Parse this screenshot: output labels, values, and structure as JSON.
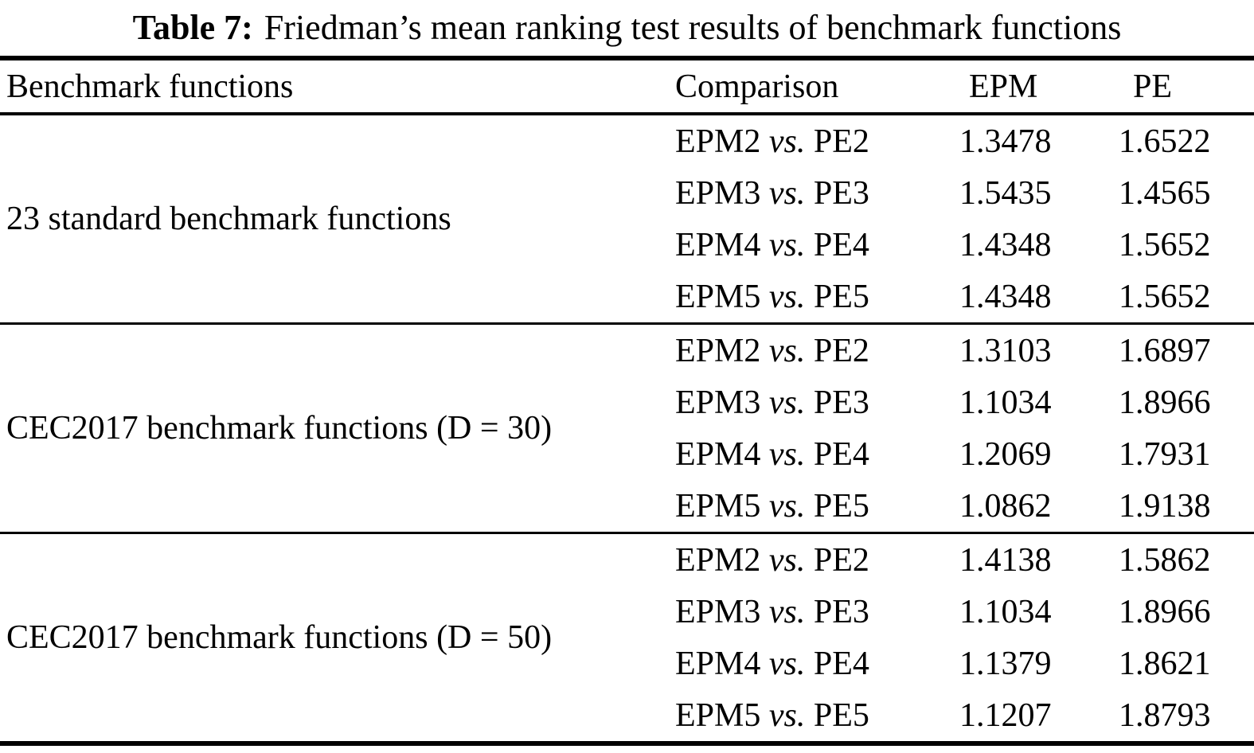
{
  "caption": {
    "label": "Table 7:",
    "title": "Friedman’s mean ranking test results of benchmark functions"
  },
  "header": {
    "benchmark": "Benchmark functions",
    "comparison": "Comparison",
    "epm": "EPM",
    "pe": "PE"
  },
  "groups": [
    {
      "label": "23 standard benchmark functions",
      "rows": [
        {
          "a": "EPM2",
          "vs": "vs.",
          "b": "PE2",
          "epm": "1.3478",
          "pe": "1.6522"
        },
        {
          "a": "EPM3",
          "vs": "vs.",
          "b": "PE3",
          "epm": "1.5435",
          "pe": "1.4565"
        },
        {
          "a": "EPM4",
          "vs": "vs.",
          "b": "PE4",
          "epm": "1.4348",
          "pe": "1.5652"
        },
        {
          "a": "EPM5",
          "vs": "vs.",
          "b": "PE5",
          "epm": "1.4348",
          "pe": "1.5652"
        }
      ]
    },
    {
      "label": "CEC2017 benchmark functions (D = 30)",
      "rows": [
        {
          "a": "EPM2",
          "vs": "vs.",
          "b": "PE2",
          "epm": "1.3103",
          "pe": "1.6897"
        },
        {
          "a": "EPM3",
          "vs": "vs.",
          "b": "PE3",
          "epm": "1.1034",
          "pe": "1.8966"
        },
        {
          "a": "EPM4",
          "vs": "vs.",
          "b": "PE4",
          "epm": "1.2069",
          "pe": "1.7931"
        },
        {
          "a": "EPM5",
          "vs": "vs.",
          "b": "PE5",
          "epm": "1.0862",
          "pe": "1.9138"
        }
      ]
    },
    {
      "label": "CEC2017 benchmark functions (D = 50)",
      "rows": [
        {
          "a": "EPM2",
          "vs": "vs.",
          "b": "PE2",
          "epm": "1.4138",
          "pe": "1.5862"
        },
        {
          "a": "EPM3",
          "vs": "vs.",
          "b": "PE3",
          "epm": "1.1034",
          "pe": "1.8966"
        },
        {
          "a": "EPM4",
          "vs": "vs.",
          "b": "PE4",
          "epm": "1.1379",
          "pe": "1.8621"
        },
        {
          "a": "EPM5",
          "vs": "vs.",
          "b": "PE5",
          "epm": "1.1207",
          "pe": "1.8793"
        }
      ]
    }
  ]
}
